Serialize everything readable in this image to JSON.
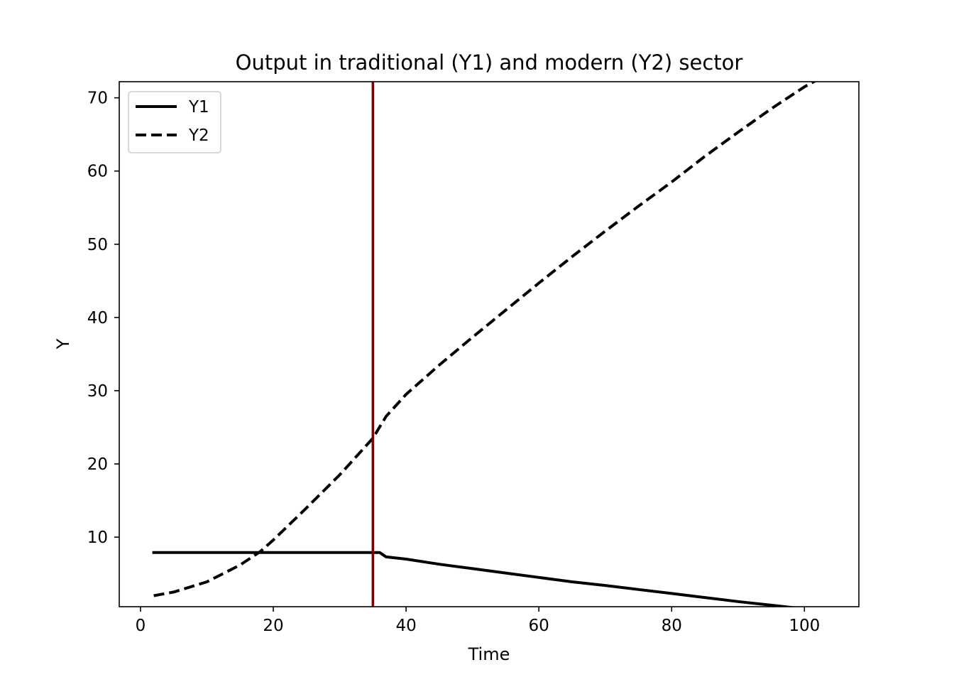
{
  "chart_data": {
    "type": "line",
    "title": "Output in traditional (Y1) and modern (Y2) sector",
    "xlabel": "Time",
    "ylabel": "Y",
    "xlim": [
      -3.2,
      108.2
    ],
    "ylim": [
      0.5,
      72.2
    ],
    "xticks": [
      0,
      20,
      40,
      60,
      80,
      100
    ],
    "yticks": [
      10,
      20,
      30,
      40,
      50,
      60,
      70
    ],
    "grid": false,
    "legend": {
      "position": "top-left",
      "entries": [
        "Y1",
        "Y2"
      ]
    },
    "vertical_line": {
      "x": 35,
      "color": "#7f0000"
    },
    "series": [
      {
        "name": "Y1",
        "style": "solid",
        "color": "#000000",
        "x": [
          2,
          10,
          20,
          30,
          35,
          36,
          37,
          40,
          45,
          50,
          55,
          60,
          65,
          70,
          75,
          80,
          85,
          90,
          95,
          100,
          103
        ],
        "y": [
          7.9,
          7.9,
          7.9,
          7.9,
          7.9,
          7.9,
          7.3,
          7.0,
          6.3,
          5.7,
          5.1,
          4.5,
          3.9,
          3.4,
          2.85,
          2.3,
          1.75,
          1.2,
          0.7,
          0.2,
          0.0
        ]
      },
      {
        "name": "Y2",
        "style": "dashed",
        "color": "#000000",
        "x": [
          2,
          5,
          10,
          15,
          18,
          20,
          25,
          30,
          35,
          37,
          40,
          45,
          50,
          55,
          60,
          65,
          70,
          75,
          80,
          85,
          90,
          95,
          100,
          103
        ],
        "y": [
          2.0,
          2.5,
          3.9,
          6.2,
          8.0,
          9.6,
          14.0,
          18.5,
          23.5,
          26.5,
          29.5,
          33.5,
          37.3,
          41.0,
          44.7,
          48.3,
          51.8,
          55.2,
          58.5,
          62.0,
          65.3,
          68.5,
          71.5,
          73.0
        ]
      }
    ]
  }
}
